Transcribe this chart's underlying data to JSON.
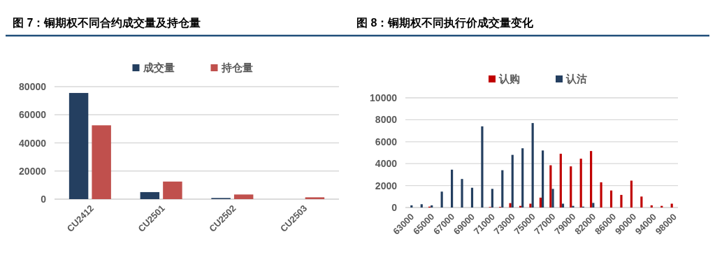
{
  "chart_data": [
    {
      "type": "bar",
      "title": "图 7：铜期权不同合约成交量及持仓量",
      "categories": [
        "CU2412",
        "CU2501",
        "CU2502",
        "CU2503"
      ],
      "series": [
        {
          "name": "成交量",
          "color": "#243f60",
          "values": [
            75500,
            5000,
            800,
            null
          ]
        },
        {
          "name": "持仓量",
          "color": "#c0504d",
          "values": [
            52500,
            12500,
            3300,
            1300
          ]
        }
      ],
      "ylim": [
        0,
        80000
      ],
      "yticks": [
        0,
        20000,
        40000,
        60000,
        80000
      ],
      "grid": "y",
      "legend": "top"
    },
    {
      "type": "bar",
      "title": "图 8：铜期权不同执行价成交量变化",
      "categories": [
        "63000",
        null,
        "65000",
        null,
        "67000",
        null,
        "69000",
        null,
        "71000",
        null,
        "73000",
        null,
        "75000",
        null,
        "77000",
        null,
        "79000",
        null,
        "82000",
        null,
        "86000",
        null,
        "90000",
        null,
        "94000",
        null,
        "98000"
      ],
      "series": [
        {
          "name": "认购",
          "color": "#c00000",
          "values": [
            0,
            0,
            80,
            0,
            0,
            0,
            0,
            null,
            50,
            60,
            400,
            150,
            350,
            900,
            3850,
            4900,
            3750,
            4450,
            5150,
            2300,
            1550,
            1150,
            2450,
            1000,
            200,
            150,
            350
          ]
        },
        {
          "name": "认沽",
          "color": "#243f60",
          "values": [
            200,
            300,
            200,
            1450,
            3450,
            2600,
            1800,
            7400,
            1700,
            3400,
            4800,
            5400,
            7700,
            5200,
            1700,
            350,
            150,
            80,
            420,
            null,
            0,
            0,
            0,
            0,
            0,
            0,
            0
          ]
        }
      ],
      "ylim": [
        0,
        10000
      ],
      "yticks": [
        0,
        2000,
        4000,
        6000,
        8000,
        10000
      ],
      "grid": "y",
      "legend": "top"
    }
  ]
}
